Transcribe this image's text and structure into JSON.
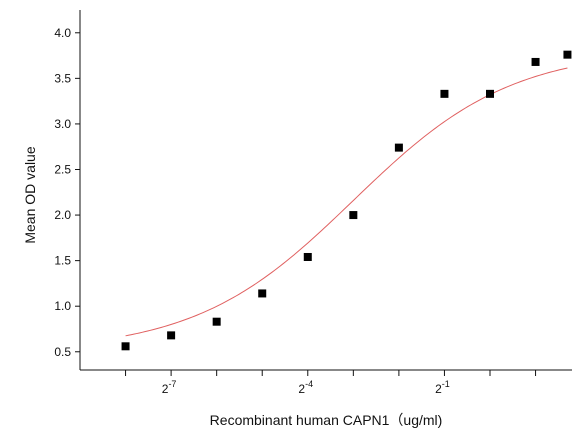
{
  "chart_data": {
    "type": "scatter",
    "title": "",
    "xlabel": "Recombinant human CAPN1（ug/ml)",
    "ylabel": "Mean OD value",
    "x_scale": "log2",
    "xlim_log2": [
      -9,
      1.8
    ],
    "ylim": [
      0.3,
      4.25
    ],
    "x_ticks": [
      {
        "label": "2",
        "exp": "-7",
        "log2": -7
      },
      {
        "label": "2",
        "exp": "-4",
        "log2": -4
      },
      {
        "label": "2",
        "exp": "-1",
        "log2": -1
      }
    ],
    "x_minor_ticks_log2": [
      -8,
      -6,
      -5,
      -3,
      -2,
      0,
      1
    ],
    "y_ticks": [
      "0.5",
      "1.0",
      "1.5",
      "2.0",
      "2.5",
      "3.0",
      "3.5",
      "4.0"
    ],
    "y_tick_values": [
      0.5,
      1.0,
      1.5,
      2.0,
      2.5,
      3.0,
      3.5,
      4.0
    ],
    "grid": false,
    "series": [
      {
        "marker": "square",
        "color": "#000000",
        "points": [
          {
            "x_log2": -8.0,
            "y": 0.56
          },
          {
            "x_log2": -7.0,
            "y": 0.68
          },
          {
            "x_log2": -6.0,
            "y": 0.83
          },
          {
            "x_log2": -5.0,
            "y": 1.14
          },
          {
            "x_log2": -4.0,
            "y": 1.54
          },
          {
            "x_log2": -3.0,
            "y": 2.0
          },
          {
            "x_log2": -2.0,
            "y": 2.74
          },
          {
            "x_log2": -1.0,
            "y": 3.33
          },
          {
            "x_log2": 0.0,
            "y": 3.33
          },
          {
            "x_log2": 1.0,
            "y": 3.68
          },
          {
            "x_log2": 1.7,
            "y": 3.76
          }
        ]
      }
    ],
    "fit_curve": {
      "color": "#e06060",
      "model": "4PL",
      "bottom": 0.5,
      "top": 3.82,
      "ec50_log2": -3.0,
      "hill_slope_log2": 0.6,
      "x_range_log2": [
        -8.0,
        1.7
      ]
    }
  }
}
